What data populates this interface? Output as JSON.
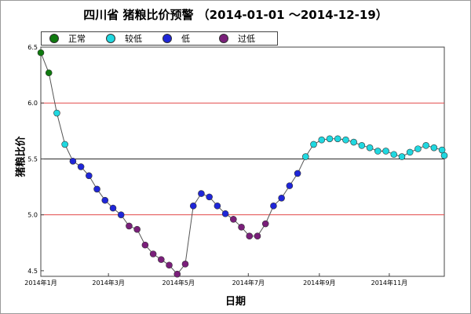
{
  "title": "四川省 猪粮比价预警 （2014-01-01 ～2014-12-19）",
  "colors": {
    "background": "#ffffff",
    "grid_red": "#e34a4a",
    "grid_black": "#2a2a2a",
    "line": "#555555",
    "normal": "#0f7a0f",
    "low": "#20d8e0",
    "very_low": "#1f26d8",
    "too_low": "#7a1f7a"
  },
  "chart_data": {
    "type": "scatter",
    "title": "四川省 猪粮比价预警 （2014-01-01 ～2014-12-19）",
    "xlabel": "日期",
    "ylabel": "猪粮比价",
    "x_range": [
      "2014-01-01",
      "2014-12-19"
    ],
    "ylim": [
      4.45,
      6.5
    ],
    "x_ticks": [
      "2014年1月",
      "2014年3月",
      "2014年5月",
      "2014年7月",
      "2014年9月",
      "2014年11月"
    ],
    "y_ticks": [
      "4.5",
      "5.0",
      "5.5",
      "6.0",
      "6.5"
    ],
    "reference_lines": [
      {
        "value": 6.0,
        "color": "red"
      },
      {
        "value": 5.5,
        "color": "black"
      },
      {
        "value": 5.0,
        "color": "red"
      }
    ],
    "legend": [
      {
        "label": "正常",
        "color": "#0f7a0f"
      },
      {
        "label": "较低",
        "color": "#20d8e0"
      },
      {
        "label": "低",
        "color": "#1f26d8"
      },
      {
        "label": "过低",
        "color": "#7a1f7a"
      }
    ],
    "legend_position": "top-left",
    "points": [
      {
        "x": "2014-01-01",
        "y": 6.45,
        "level": "正常"
      },
      {
        "x": "2014-01-08",
        "y": 6.27,
        "level": "正常"
      },
      {
        "x": "2014-01-15",
        "y": 5.91,
        "level": "较低"
      },
      {
        "x": "2014-01-22",
        "y": 5.63,
        "level": "较低"
      },
      {
        "x": "2014-01-29",
        "y": 5.48,
        "level": "低"
      },
      {
        "x": "2014-02-05",
        "y": 5.43,
        "level": "低"
      },
      {
        "x": "2014-02-12",
        "y": 5.35,
        "level": "低"
      },
      {
        "x": "2014-02-19",
        "y": 5.23,
        "level": "低"
      },
      {
        "x": "2014-02-26",
        "y": 5.13,
        "level": "低"
      },
      {
        "x": "2014-03-05",
        "y": 5.06,
        "level": "低"
      },
      {
        "x": "2014-03-12",
        "y": 5.0,
        "level": "低"
      },
      {
        "x": "2014-03-19",
        "y": 4.9,
        "level": "过低"
      },
      {
        "x": "2014-03-26",
        "y": 4.87,
        "level": "过低"
      },
      {
        "x": "2014-04-02",
        "y": 4.73,
        "level": "过低"
      },
      {
        "x": "2014-04-09",
        "y": 4.65,
        "level": "过低"
      },
      {
        "x": "2014-04-16",
        "y": 4.6,
        "level": "过低"
      },
      {
        "x": "2014-04-23",
        "y": 4.55,
        "level": "过低"
      },
      {
        "x": "2014-04-30",
        "y": 4.47,
        "level": "过低"
      },
      {
        "x": "2014-05-07",
        "y": 4.56,
        "level": "过低"
      },
      {
        "x": "2014-05-14",
        "y": 5.08,
        "level": "低"
      },
      {
        "x": "2014-05-21",
        "y": 5.19,
        "level": "低"
      },
      {
        "x": "2014-05-28",
        "y": 5.16,
        "level": "低"
      },
      {
        "x": "2014-06-04",
        "y": 5.08,
        "level": "低"
      },
      {
        "x": "2014-06-11",
        "y": 5.01,
        "level": "低"
      },
      {
        "x": "2014-06-18",
        "y": 4.96,
        "level": "过低"
      },
      {
        "x": "2014-06-25",
        "y": 4.89,
        "level": "过低"
      },
      {
        "x": "2014-07-02",
        "y": 4.81,
        "level": "过低"
      },
      {
        "x": "2014-07-09",
        "y": 4.81,
        "level": "过低"
      },
      {
        "x": "2014-07-16",
        "y": 4.92,
        "level": "过低"
      },
      {
        "x": "2014-07-23",
        "y": 5.08,
        "level": "低"
      },
      {
        "x": "2014-07-30",
        "y": 5.15,
        "level": "低"
      },
      {
        "x": "2014-08-06",
        "y": 5.26,
        "level": "低"
      },
      {
        "x": "2014-08-13",
        "y": 5.37,
        "level": "低"
      },
      {
        "x": "2014-08-20",
        "y": 5.52,
        "level": "较低"
      },
      {
        "x": "2014-08-27",
        "y": 5.63,
        "level": "较低"
      },
      {
        "x": "2014-09-03",
        "y": 5.67,
        "level": "较低"
      },
      {
        "x": "2014-09-10",
        "y": 5.68,
        "level": "较低"
      },
      {
        "x": "2014-09-17",
        "y": 5.68,
        "level": "较低"
      },
      {
        "x": "2014-09-24",
        "y": 5.67,
        "level": "较低"
      },
      {
        "x": "2014-10-01",
        "y": 5.65,
        "level": "较低"
      },
      {
        "x": "2014-10-08",
        "y": 5.62,
        "level": "较低"
      },
      {
        "x": "2014-10-15",
        "y": 5.6,
        "level": "较低"
      },
      {
        "x": "2014-10-22",
        "y": 5.57,
        "level": "较低"
      },
      {
        "x": "2014-10-29",
        "y": 5.57,
        "level": "较低"
      },
      {
        "x": "2014-11-05",
        "y": 5.54,
        "level": "较低"
      },
      {
        "x": "2014-11-12",
        "y": 5.52,
        "level": "较低"
      },
      {
        "x": "2014-11-19",
        "y": 5.56,
        "level": "较低"
      },
      {
        "x": "2014-11-26",
        "y": 5.59,
        "level": "较低"
      },
      {
        "x": "2014-12-03",
        "y": 5.62,
        "level": "较低"
      },
      {
        "x": "2014-12-10",
        "y": 5.6,
        "level": "较低"
      },
      {
        "x": "2014-12-17",
        "y": 5.58,
        "level": "较低"
      },
      {
        "x": "2014-12-19",
        "y": 5.53,
        "level": "较低"
      }
    ]
  }
}
